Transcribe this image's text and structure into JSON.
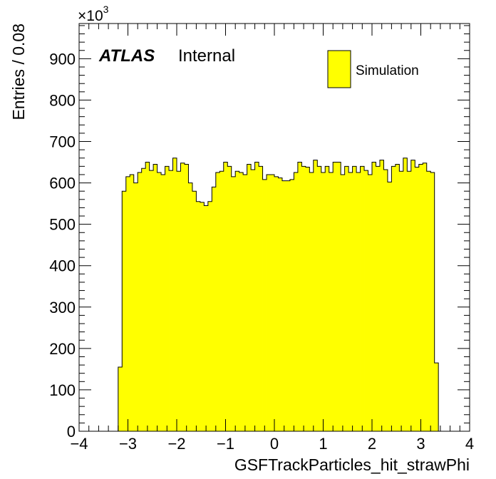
{
  "chart_data": {
    "type": "bar",
    "histogram": true,
    "xlabel": "GSFTrackParticles_hit_strawPhi",
    "ylabel": "Entries / 0.08",
    "y_multiplier_label": "×10",
    "y_multiplier_exponent": "3",
    "xlim": [
      -4,
      4
    ],
    "ylim": [
      0,
      985
    ],
    "x_ticks": [
      "−4",
      "−3",
      "−2",
      "−1",
      "0",
      "1",
      "2",
      "3",
      "4"
    ],
    "y_ticks": [
      "0",
      "100",
      "200",
      "300",
      "400",
      "500",
      "600",
      "700",
      "800",
      "900"
    ],
    "bin_start": -3.2,
    "bin_width": 0.08,
    "series": [
      {
        "name": "Simulation",
        "fill": "#ffff00",
        "values": [
          155,
          580,
          615,
          620,
          600,
          625,
          635,
          650,
          630,
          645,
          625,
          620,
          640,
          630,
          660,
          628,
          648,
          645,
          600,
          580,
          555,
          553,
          545,
          555,
          590,
          625,
          628,
          650,
          640,
          615,
          628,
          625,
          620,
          645,
          632,
          650,
          640,
          608,
          620,
          620,
          615,
          612,
          605,
          605,
          608,
          625,
          650,
          640,
          638,
          625,
          655,
          640,
          625,
          640,
          625,
          650,
          650,
          620,
          640,
          625,
          640,
          625,
          640,
          630,
          620,
          650,
          640,
          655,
          632,
          602,
          640,
          645,
          628,
          660,
          628,
          655,
          638,
          645,
          648,
          628,
          625,
          165
        ]
      }
    ],
    "legend": {
      "placement": "top-right",
      "entries": [
        "Simulation"
      ]
    },
    "annotation": {
      "atlas": "ATLAS",
      "label": "Internal"
    },
    "grid": false
  }
}
